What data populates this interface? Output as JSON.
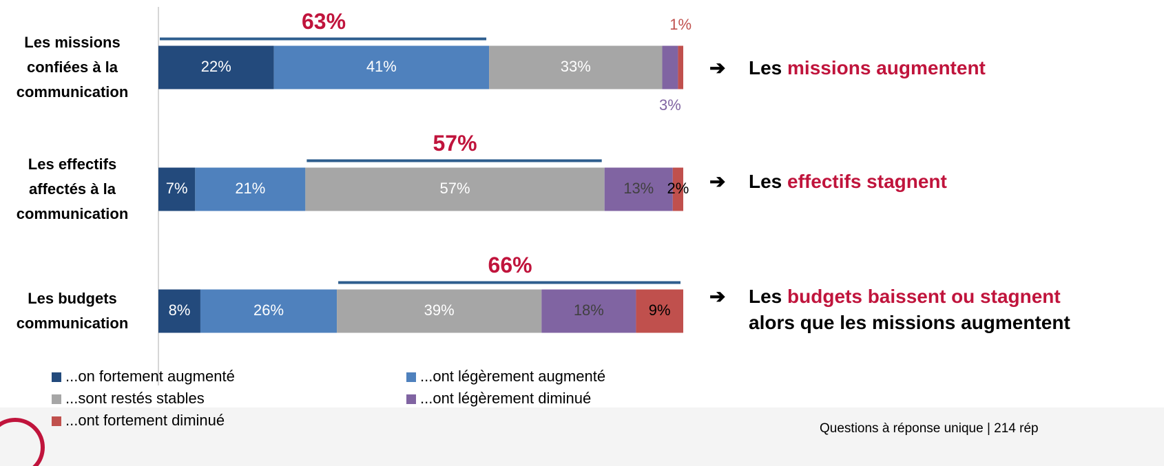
{
  "chart_data": {
    "type": "stacked_barh",
    "categories": [
      "Les missions confiées à la communication",
      "Les effectifs affectés à la communication",
      "Les budgets communication"
    ],
    "xlim": [
      0,
      100
    ],
    "series": [
      {
        "name": "...on fortement augmenté",
        "color": "#234a7c",
        "label_color": "#ffffff",
        "values": [
          22,
          7,
          8
        ],
        "value_labels": [
          "22%",
          "7%",
          "8%"
        ]
      },
      {
        "name": "...ont légèrement augmenté",
        "color": "#4f81bd",
        "label_color": "#ffffff",
        "values": [
          41,
          21,
          26
        ],
        "value_labels": [
          "41%",
          "21%",
          "26%"
        ]
      },
      {
        "name": "...sont restés stables",
        "color": "#a6a6a6",
        "label_color": "#ffffff",
        "values": [
          33,
          57,
          39
        ],
        "value_labels": [
          "33%",
          "57%",
          "39%"
        ]
      },
      {
        "name": "...ont légèrement diminué",
        "color": "#8064a2",
        "label_color": "#404040",
        "values": [
          3,
          13,
          18
        ],
        "value_labels": [
          "3%",
          "13%",
          "18%"
        ]
      },
      {
        "name": "...ont fortement diminué",
        "color": "#c0504d",
        "label_color": "#000000",
        "values": [
          1,
          2,
          9
        ],
        "value_labels": [
          "1%",
          "2%",
          "9%"
        ]
      }
    ],
    "annotations": [
      {
        "row": 0,
        "series_span": [
          0,
          1
        ],
        "value": 63,
        "label": "63%"
      },
      {
        "row": 1,
        "series_span": [
          2,
          2
        ],
        "value": 57,
        "label": "57%"
      },
      {
        "row": 2,
        "series_span": [
          2,
          4
        ],
        "value": 66,
        "label": "66%"
      }
    ],
    "annotation_color": "#c0143c",
    "conclusions": [
      {
        "marker": "➔",
        "parts": [
          {
            "text": "Les "
          },
          {
            "text": "missions augmentent",
            "highlight": true
          }
        ]
      },
      {
        "marker": "➔",
        "parts": [
          {
            "text": "Les "
          },
          {
            "text": "effectifs stagnent",
            "highlight": true
          }
        ]
      },
      {
        "marker": "➔",
        "parts": [
          {
            "text": "Les "
          },
          {
            "text": "budgets baissent ou stagnent",
            "highlight": true
          },
          {
            "text": " alors que les missions augmentent"
          }
        ]
      }
    ],
    "footnote": "Questions à réponse unique | 214 rép"
  }
}
